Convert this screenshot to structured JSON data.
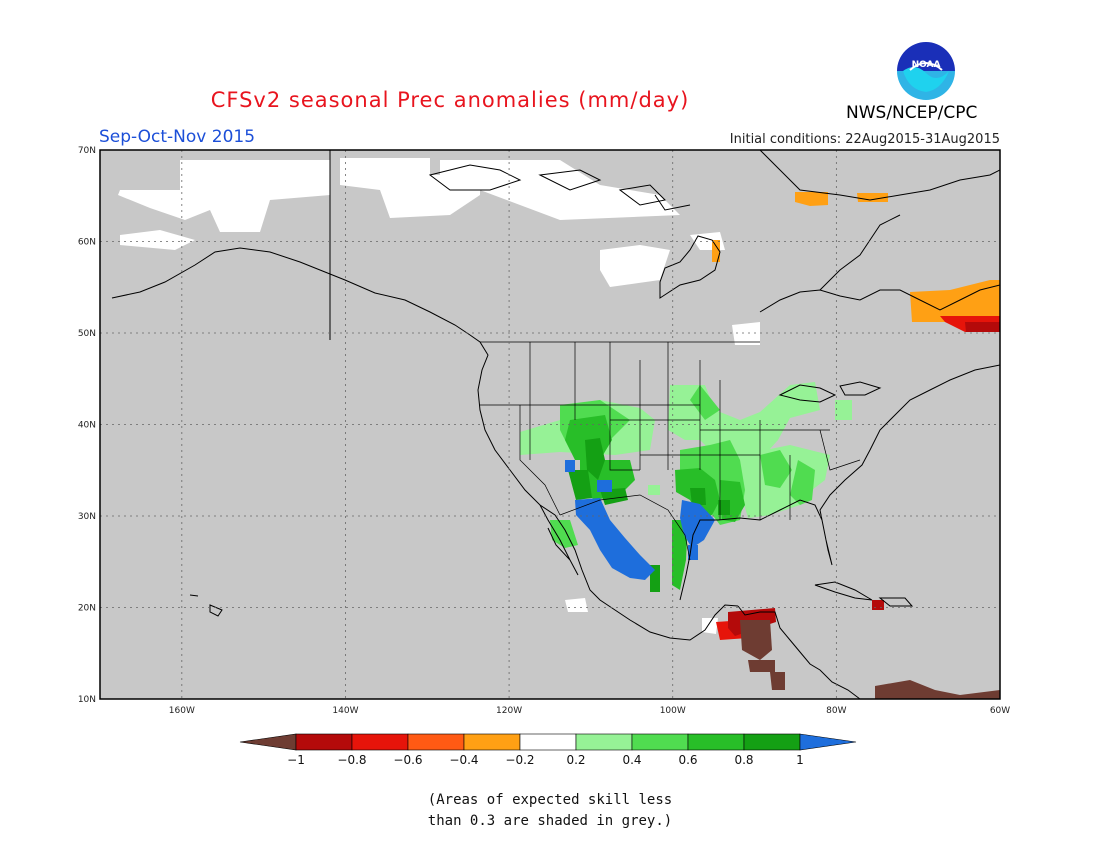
{
  "header": {
    "title": "CFSv2 seasonal Prec anomalies (mm/day)",
    "season": "Sep-Oct-Nov 2015",
    "initial_conditions": "Initial conditions: 22Aug2015-31Aug2015",
    "agency": "NWS/NCEP/CPC",
    "logo_text": "NOAA"
  },
  "map": {
    "projection": "lat-lon",
    "lon_range": [
      -170,
      -60
    ],
    "lat_range": [
      10,
      70
    ],
    "lon_ticks": [
      "160W",
      "140W",
      "120W",
      "100W",
      "80W",
      "60W"
    ],
    "lat_ticks": [
      "70N",
      "60N",
      "50N",
      "40N",
      "30N",
      "20N",
      "10N"
    ],
    "grid": "dotted",
    "background_color": "#c8c8c8",
    "coastline_color": "#000000"
  },
  "colorbar": {
    "labels": [
      "−1",
      "−0.8",
      "−0.6",
      "−0.4",
      "−0.2",
      "0.2",
      "0.4",
      "0.6",
      "0.8",
      "1"
    ],
    "colors": [
      "#6e3c32",
      "#b40a0a",
      "#e6140a",
      "#ff5a14",
      "#ffa014",
      "#ffffff",
      "#96f296",
      "#50dc50",
      "#28be28",
      "#14a014",
      "#1e6edc"
    ]
  },
  "footnote": {
    "line1": "(Areas of expected skill less",
    "line2": "than 0.3 are shaded in grey.)"
  }
}
